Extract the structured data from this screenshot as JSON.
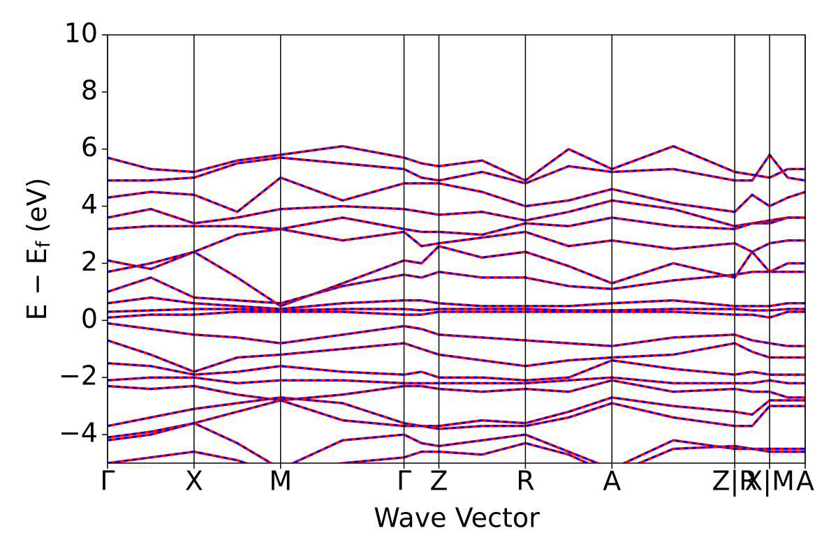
{
  "chart_data": {
    "type": "line",
    "xlabel": "Wave Vector",
    "ylabel": [
      "E − E",
      "f",
      " (eV)"
    ],
    "xlim": [
      0,
      1
    ],
    "xticks": [
      {
        "value": 0,
        "label": "Γ"
      },
      {
        "value": 0.124,
        "label": "X"
      },
      {
        "value": 0.248,
        "label": "M"
      },
      {
        "value": 0.425,
        "label": "Γ"
      },
      {
        "value": 0.475,
        "label": "Z"
      },
      {
        "value": 0.599,
        "label": "R"
      },
      {
        "value": 0.723,
        "label": "A"
      },
      {
        "value": 0.899,
        "label": "Z|R"
      },
      {
        "value": 0.949,
        "label": "X|M"
      },
      {
        "value": 1.0,
        "label": "A"
      }
    ],
    "ylim": [
      -5,
      10
    ],
    "yticks": [
      {
        "value": -4,
        "label": "−4"
      },
      {
        "value": -2,
        "label": "−2"
      },
      0,
      2,
      4,
      6,
      8,
      10
    ],
    "dash_color": "#0000ff",
    "x": [
      0,
      0.062,
      0.124,
      0.186,
      0.248,
      0.337,
      0.425,
      0.45,
      0.475,
      0.537,
      0.599,
      0.661,
      0.723,
      0.811,
      0.899,
      0.924,
      0.949,
      0.975,
      1.0
    ],
    "series": [
      {
        "color": "#ff0000",
        "values": [
          5.7,
          5.3,
          5.2,
          5.6,
          5.8,
          6.1,
          5.7,
          5.5,
          5.4,
          5.6,
          4.9,
          6.0,
          5.3,
          6.1,
          5.2,
          5.1,
          5.0,
          5.3,
          5.3
        ]
      },
      {
        "color": "#ff0000",
        "values": [
          4.9,
          4.9,
          5.0,
          5.5,
          5.7,
          5.5,
          5.3,
          5.0,
          4.9,
          5.2,
          4.8,
          5.4,
          5.2,
          5.3,
          4.9,
          4.9,
          5.8,
          5.0,
          4.9
        ]
      },
      {
        "color": "#ff0000",
        "values": [
          4.3,
          4.5,
          4.4,
          3.8,
          5.0,
          4.2,
          4.8,
          4.8,
          4.8,
          4.5,
          4.0,
          4.2,
          4.6,
          4.1,
          3.8,
          4.4,
          4.0,
          4.3,
          4.5
        ]
      },
      {
        "color": "#ff0000",
        "values": [
          3.6,
          3.9,
          3.4,
          3.6,
          3.9,
          4.0,
          3.9,
          3.8,
          3.7,
          3.8,
          3.5,
          3.8,
          4.2,
          3.9,
          3.3,
          3.4,
          3.5,
          3.6,
          3.6
        ]
      },
      {
        "color": "#ff0000",
        "values": [
          3.2,
          3.3,
          3.3,
          3.3,
          3.2,
          3.6,
          3.2,
          3.1,
          3.1,
          3.0,
          3.4,
          3.3,
          3.6,
          3.3,
          3.2,
          3.4,
          3.4,
          3.6,
          3.6
        ]
      },
      {
        "color": "#ff0000",
        "values": [
          2.1,
          1.8,
          2.4,
          3.0,
          3.2,
          2.8,
          3.1,
          2.6,
          2.7,
          2.9,
          3.1,
          2.6,
          2.8,
          2.5,
          2.7,
          2.4,
          2.7,
          2.8,
          2.8
        ]
      },
      {
        "color": "#ff0000",
        "values": [
          1.7,
          2.0,
          2.4,
          1.5,
          0.5,
          1.3,
          2.1,
          2.0,
          2.6,
          2.2,
          2.4,
          1.9,
          1.3,
          2.0,
          1.5,
          2.4,
          1.7,
          2.0,
          2.0
        ]
      },
      {
        "color": "#ff0000",
        "values": [
          1.0,
          1.5,
          0.8,
          0.7,
          0.6,
          1.2,
          1.6,
          1.5,
          1.7,
          1.5,
          1.5,
          1.2,
          1.1,
          1.4,
          1.6,
          1.7,
          1.7,
          1.7,
          1.7
        ]
      },
      {
        "color": "#ff0000",
        "values": [
          0.6,
          0.8,
          0.6,
          0.5,
          0.4,
          0.6,
          0.7,
          0.7,
          0.6,
          0.5,
          0.5,
          0.5,
          0.6,
          0.7,
          0.5,
          0.5,
          0.5,
          0.6,
          0.6
        ]
      },
      {
        "color": "#ff0000",
        "values": [
          0.3,
          0.35,
          0.4,
          0.4,
          0.35,
          0.4,
          0.4,
          0.35,
          0.4,
          0.4,
          0.4,
          0.35,
          0.35,
          0.4,
          0.4,
          0.35,
          0.35,
          0.4,
          0.4
        ]
      },
      {
        "color": "#ff0000",
        "values": [
          0.1,
          0.2,
          0.2,
          0.3,
          0.3,
          0.3,
          0.2,
          0.2,
          0.3,
          0.3,
          0.3,
          0.3,
          0.3,
          0.3,
          0.2,
          0.2,
          0.1,
          0.3,
          0.3
        ]
      },
      {
        "color": "#ff0000",
        "values": [
          -0.1,
          -0.3,
          -0.5,
          -0.6,
          -0.8,
          -0.5,
          -0.2,
          -0.3,
          -0.5,
          -0.6,
          -0.7,
          -0.8,
          -0.9,
          -0.6,
          -0.5,
          -0.7,
          -0.8,
          -0.9,
          -0.9
        ]
      },
      {
        "color": "#ff0000",
        "values": [
          -0.7,
          -1.2,
          -1.8,
          -1.3,
          -1.2,
          -1.0,
          -0.8,
          -1.0,
          -1.2,
          -1.4,
          -1.6,
          -1.4,
          -1.3,
          -1.2,
          -0.8,
          -1.1,
          -1.3,
          -1.3,
          -1.3
        ]
      },
      {
        "color": "#ff0000",
        "values": [
          -1.5,
          -1.6,
          -1.9,
          -1.8,
          -1.6,
          -1.8,
          -1.9,
          -1.8,
          -2.0,
          -2.0,
          -2.1,
          -2.0,
          -1.4,
          -1.7,
          -1.9,
          -1.8,
          -1.9,
          -1.9,
          -1.9
        ]
      },
      {
        "color": "#ff0000",
        "values": [
          -2.1,
          -2.0,
          -2.0,
          -2.2,
          -2.1,
          -2.1,
          -2.2,
          -2.2,
          -2.2,
          -2.2,
          -2.2,
          -2.1,
          -2.0,
          -2.2,
          -2.2,
          -2.2,
          -2.1,
          -2.2,
          -2.2
        ]
      },
      {
        "color": "#ff0000",
        "values": [
          -2.3,
          -2.4,
          -2.3,
          -2.6,
          -2.8,
          -2.6,
          -2.3,
          -2.3,
          -2.4,
          -2.5,
          -2.4,
          -2.5,
          -2.1,
          -2.5,
          -2.4,
          -2.5,
          -2.5,
          -2.7,
          -2.7
        ]
      },
      {
        "color": "#ff0000",
        "values": [
          -3.7,
          -3.4,
          -3.1,
          -2.9,
          -2.7,
          -2.9,
          -3.6,
          -3.7,
          -3.7,
          -3.5,
          -3.6,
          -3.2,
          -2.7,
          -3.0,
          -3.2,
          -3.3,
          -2.8,
          -2.8,
          -2.8
        ]
      },
      {
        "color": "#ff0000",
        "values": [
          -4.1,
          -3.9,
          -3.6,
          -3.2,
          -2.8,
          -3.5,
          -3.7,
          -3.7,
          -3.8,
          -3.7,
          -3.7,
          -3.4,
          -2.9,
          -3.4,
          -3.7,
          -3.7,
          -3.0,
          -3.0,
          -3.0
        ]
      },
      {
        "color": "#ff0000",
        "values": [
          -4.2,
          -4.0,
          -3.6,
          -4.3,
          -5.2,
          -4.2,
          -4.0,
          -4.3,
          -4.4,
          -4.2,
          -4.0,
          -4.6,
          -5.2,
          -4.2,
          -4.5,
          -4.5,
          -4.5,
          -4.5,
          -4.5
        ]
      },
      {
        "color": "#ff0000",
        "values": [
          -5.0,
          -4.8,
          -4.6,
          -4.9,
          -5.4,
          -5.0,
          -4.8,
          -4.6,
          -4.6,
          -4.7,
          -4.3,
          -4.7,
          -5.4,
          -4.5,
          -4.4,
          -4.5,
          -4.6,
          -4.6,
          -4.6
        ]
      }
    ]
  }
}
